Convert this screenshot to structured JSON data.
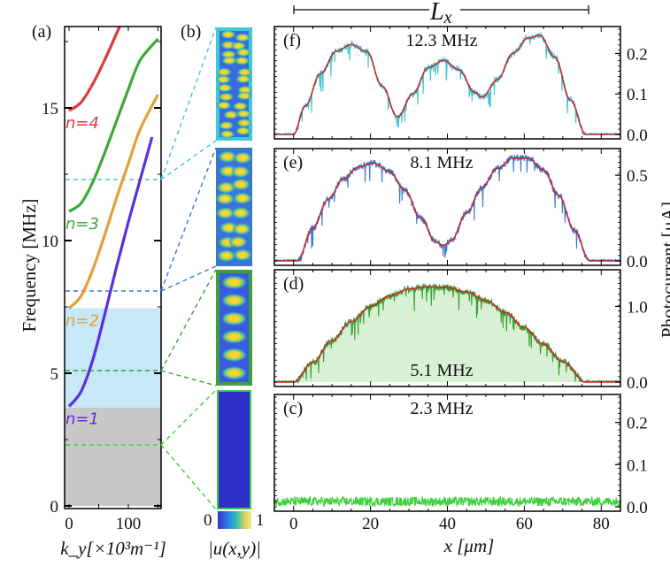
{
  "figure": {
    "lx_label": "L",
    "lx_sub": "x",
    "colorbar": {
      "min_label": "0",
      "max_label": "1",
      "title": "|u(x,y)|"
    },
    "right_axis_title": "Photocurrent [μA]"
  },
  "chart_data": [
    {
      "id": "a",
      "type": "line",
      "panel_label": "(a)",
      "title": "",
      "xlabel": "k_y[×10³m⁻¹]",
      "ylabel": "Frequency [MHz]",
      "xlim": [
        -8,
        155
      ],
      "ylim": [
        0,
        18.1
      ],
      "xticks": [
        0,
        100
      ],
      "xtick_labels": [
        "0",
        "100"
      ],
      "yticks": [
        0,
        5,
        10,
        15
      ],
      "ytick_labels": [
        "0",
        "5",
        "10",
        "15"
      ],
      "bands": [
        {
          "name": "gray-region",
          "from": 0,
          "to": 3.7,
          "color": "#c8c8c8"
        },
        {
          "name": "light-blue-region",
          "from": 3.7,
          "to": 7.45,
          "color": "#c6e8f7"
        }
      ],
      "series": [
        {
          "name": "n=1",
          "label": "n=1",
          "color": "#5a2fe0",
          "f0": 3.75,
          "points": [
            [
              0,
              3.75
            ],
            [
              20,
              4.3
            ],
            [
              40,
              5.5
            ],
            [
              60,
              7.2
            ],
            [
              80,
              9.0
            ],
            [
              100,
              10.7
            ],
            [
              120,
              12.3
            ],
            [
              140,
              13.9
            ]
          ]
        },
        {
          "name": "n=2",
          "label": "n=2",
          "color": "#e3a03a",
          "f0": 7.45,
          "points": [
            [
              0,
              7.45
            ],
            [
              20,
              7.9
            ],
            [
              40,
              8.9
            ],
            [
              60,
              10.2
            ],
            [
              80,
              11.6
            ],
            [
              100,
              12.9
            ],
            [
              120,
              14.2
            ],
            [
              150,
              15.5
            ]
          ]
        },
        {
          "name": "n=3",
          "label": "n=3",
          "color": "#3aaa35",
          "f0": 11.1,
          "points": [
            [
              0,
              11.1
            ],
            [
              20,
              11.4
            ],
            [
              40,
              12.2
            ],
            [
              60,
              13.3
            ],
            [
              80,
              14.5
            ],
            [
              100,
              15.7
            ],
            [
              120,
              16.8
            ],
            [
              150,
              17.6
            ]
          ]
        },
        {
          "name": "n=4",
          "label": "n=4",
          "color": "#e03a3a",
          "f0": 14.9,
          "points": [
            [
              0,
              14.9
            ],
            [
              20,
              15.2
            ],
            [
              40,
              15.9
            ],
            [
              60,
              16.8
            ],
            [
              80,
              17.8
            ],
            [
              90,
              18.3
            ]
          ]
        }
      ],
      "markers": [
        {
          "freq": 12.3,
          "color": "#3ec8d8"
        },
        {
          "freq": 8.1,
          "color": "#3a78c8"
        },
        {
          "freq": 5.1,
          "color": "#3aa040"
        },
        {
          "freq": 2.3,
          "color": "#3ad03a"
        }
      ]
    },
    {
      "id": "f",
      "type": "line",
      "panel_label": "(f)",
      "title": "12.3 MHz",
      "frequency_mhz": 12.3,
      "data_color": "#3ec8d0",
      "fit_color": "#d0202a",
      "xlim": [
        -5,
        85
      ],
      "ylim": [
        0,
        0.26
      ],
      "yticks": [
        0.0,
        0.1,
        0.2
      ],
      "ytick_labels": [
        "0.0",
        "0.1",
        "0.2"
      ],
      "fit": {
        "x": [
          -5,
          0,
          3,
          7,
          11,
          15,
          19,
          23,
          27,
          31,
          35,
          39,
          43,
          47,
          49,
          53,
          57,
          61,
          64,
          68,
          72,
          76,
          80,
          85
        ],
        "y": [
          0,
          0,
          0.07,
          0.15,
          0.205,
          0.222,
          0.205,
          0.12,
          0.043,
          0.1,
          0.165,
          0.183,
          0.16,
          0.105,
          0.092,
          0.135,
          0.2,
          0.238,
          0.245,
          0.19,
          0.085,
          0,
          0,
          0
        ]
      }
    },
    {
      "id": "e",
      "type": "line",
      "panel_label": "(e)",
      "title": "8.1 MHz",
      "frequency_mhz": 8.1,
      "data_color": "#3c7fd0",
      "fit_color": "#d0202a",
      "xlim": [
        -5,
        85
      ],
      "ylim": [
        0,
        0.64
      ],
      "yticks": [
        0.0,
        0.5
      ],
      "ytick_labels": [
        "0.0",
        "0.5"
      ],
      "fit": {
        "x": [
          -5,
          1,
          5,
          9,
          13,
          17,
          21,
          25,
          29,
          33,
          37,
          39,
          41,
          45,
          49,
          53,
          57,
          61,
          65,
          69,
          73,
          77,
          85
        ],
        "y": [
          0,
          0,
          0.19,
          0.36,
          0.48,
          0.55,
          0.57,
          0.52,
          0.41,
          0.25,
          0.11,
          0.09,
          0.12,
          0.28,
          0.43,
          0.54,
          0.6,
          0.6,
          0.53,
          0.38,
          0.18,
          0,
          0
        ]
      }
    },
    {
      "id": "d",
      "type": "area",
      "panel_label": "(d)",
      "title": "5.1 MHz",
      "frequency_mhz": 5.1,
      "data_color": "#3aa035",
      "fill_color": "#d8f0d4",
      "fit_color": "#d0202a",
      "xlim": [
        -5,
        85
      ],
      "ylim": [
        0,
        1.45
      ],
      "yticks": [
        0.0,
        1.0
      ],
      "ytick_labels": [
        "0.0",
        "1.0"
      ],
      "fit": {
        "x": [
          -5,
          0,
          5,
          10,
          15,
          20,
          25,
          30,
          35,
          40,
          45,
          50,
          55,
          60,
          65,
          70,
          76,
          85
        ],
        "y": [
          0,
          0,
          0.26,
          0.55,
          0.8,
          1.0,
          1.14,
          1.23,
          1.26,
          1.25,
          1.19,
          1.08,
          0.92,
          0.72,
          0.5,
          0.27,
          0,
          0
        ]
      }
    },
    {
      "id": "c",
      "type": "line",
      "panel_label": "(c)",
      "title": "2.3 MHz",
      "frequency_mhz": 2.3,
      "data_color": "#3ecf3a",
      "xlim": [
        -5,
        85
      ],
      "ylim": [
        0,
        0.26
      ],
      "yticks": [
        0.0,
        0.1,
        0.2
      ],
      "ytick_labels": [
        "0.0",
        "0.1",
        "0.2"
      ],
      "xticks": [
        0,
        20,
        40,
        60,
        80
      ],
      "xtick_labels": [
        "0",
        "20",
        "40",
        "60",
        "80"
      ],
      "xlabel": "x [μm]",
      "noise_level": 0.01
    }
  ]
}
